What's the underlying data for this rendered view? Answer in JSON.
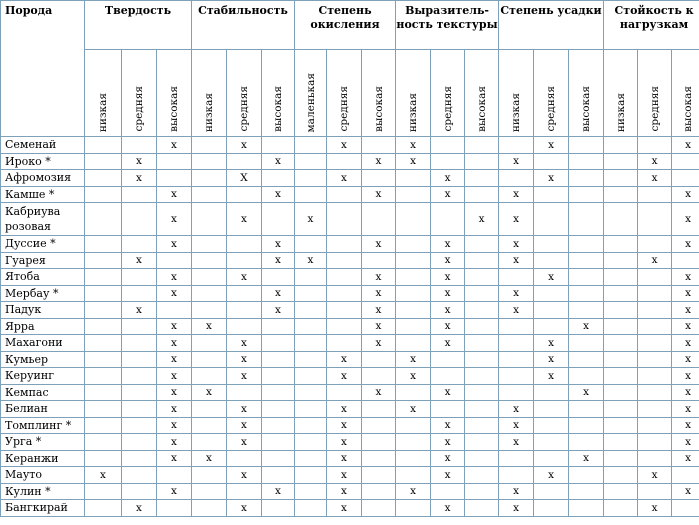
{
  "header": {
    "breed_label": "Порода",
    "groups": [
      "Твердость",
      "Стабильность",
      "Степень окисления",
      "Выразитель-ность текстуры",
      "Степень усадки",
      "Стойкость к нагрузкам"
    ],
    "sublevels": [
      [
        "низкая",
        "средняя",
        "высокая"
      ],
      [
        "низкая",
        "средняя",
        "высокая"
      ],
      [
        "маленькая",
        "средняя",
        "высокая"
      ],
      [
        "низкая",
        "средняя",
        "высокая"
      ],
      [
        "низкая",
        "средняя",
        "высокая"
      ],
      [
        "низкая",
        "средняя",
        "высокая"
      ]
    ]
  },
  "rows": [
    {
      "name": "Семенай",
      "marks": [
        "",
        "",
        "x",
        "",
        "x",
        "",
        "",
        "x",
        "",
        "x",
        "",
        "",
        "",
        "x",
        "",
        "",
        "",
        "x"
      ]
    },
    {
      "name": "Ироко *",
      "marks": [
        "",
        "x",
        "",
        "",
        "",
        "x",
        "",
        "",
        "x",
        "x",
        "",
        "",
        "x",
        "",
        "",
        "",
        "x",
        ""
      ]
    },
    {
      "name": "Афромозия",
      "marks": [
        "",
        "x",
        "",
        "",
        "X",
        "",
        "",
        "x",
        "",
        "",
        "x",
        "",
        "",
        "x",
        "",
        "",
        "x",
        ""
      ]
    },
    {
      "name": "Камше *",
      "marks": [
        "",
        "",
        "x",
        "",
        "",
        "x",
        "",
        "",
        "x",
        "",
        "x",
        "",
        "x",
        "",
        "",
        "",
        "",
        "x"
      ]
    },
    {
      "name": "Кабриува розовая",
      "marks": [
        "",
        "",
        "x",
        "",
        "x",
        "",
        "x",
        "",
        "",
        "",
        "",
        "x",
        "x",
        "",
        "",
        "",
        "",
        "x"
      ]
    },
    {
      "name": "Дуссие *",
      "marks": [
        "",
        "",
        "x",
        "",
        "",
        "x",
        "",
        "",
        "x",
        "",
        "x",
        "",
        "x",
        "",
        "",
        "",
        "",
        "x"
      ]
    },
    {
      "name": "Гуарея",
      "marks": [
        "",
        "x",
        "",
        "",
        "",
        "x",
        "x",
        "",
        "",
        "",
        "x",
        "",
        "x",
        "",
        "",
        "",
        "x",
        ""
      ]
    },
    {
      "name": "Ятоба",
      "marks": [
        "",
        "",
        "x",
        "",
        "x",
        "",
        "",
        "",
        "x",
        "",
        "x",
        "",
        "",
        "x",
        "",
        "",
        "",
        "x"
      ]
    },
    {
      "name": "Мербау *",
      "marks": [
        "",
        "",
        "x",
        "",
        "",
        "x",
        "",
        "",
        "x",
        "",
        "x",
        "",
        "x",
        "",
        "",
        "",
        "",
        "x"
      ]
    },
    {
      "name": "Падук",
      "marks": [
        "",
        "x",
        "",
        "",
        "",
        "x",
        "",
        "",
        "x",
        "",
        "x",
        "",
        "x",
        "",
        "",
        "",
        "",
        "x"
      ]
    },
    {
      "name": "Ярра",
      "marks": [
        "",
        "",
        "x",
        "x",
        "",
        "",
        "",
        "",
        "x",
        "",
        "x",
        "",
        "",
        "",
        "x",
        "",
        "",
        "x"
      ]
    },
    {
      "name": "Махагони",
      "marks": [
        "",
        "",
        "x",
        "",
        "x",
        "",
        "",
        "",
        "x",
        "",
        "x",
        "",
        "",
        "x",
        "",
        "",
        "",
        "x"
      ]
    },
    {
      "name": "Кумьер",
      "marks": [
        "",
        "",
        "x",
        "",
        "x",
        "",
        "",
        "x",
        "",
        "x",
        "",
        "",
        "",
        "x",
        "",
        "",
        "",
        "x"
      ]
    },
    {
      "name": "Керуинг",
      "marks": [
        "",
        "",
        "x",
        "",
        "x",
        "",
        "",
        "x",
        "",
        "x",
        "",
        "",
        "",
        "x",
        "",
        "",
        "",
        "x"
      ]
    },
    {
      "name": "Кемпас",
      "marks": [
        "",
        "",
        "x",
        "x",
        "",
        "",
        "",
        "",
        "x",
        "",
        "x",
        "",
        "",
        "",
        "x",
        "",
        "",
        "x"
      ]
    },
    {
      "name": "Белиан",
      "marks": [
        "",
        "",
        "x",
        "",
        "x",
        "",
        "",
        "x",
        "",
        "x",
        "",
        "",
        "x",
        "",
        "",
        "",
        "",
        "x"
      ]
    },
    {
      "name": "Томплинг *",
      "marks": [
        "",
        "",
        "x",
        "",
        "x",
        "",
        "",
        "x",
        "",
        "",
        "x",
        "",
        "x",
        "",
        "",
        "",
        "",
        "x"
      ]
    },
    {
      "name": "Урга *",
      "marks": [
        "",
        "",
        "x",
        "",
        "x",
        "",
        "",
        "x",
        "",
        "",
        "x",
        "",
        "x",
        "",
        "",
        "",
        "",
        "x"
      ]
    },
    {
      "name": "Керанжи",
      "marks": [
        "",
        "",
        "x",
        "x",
        "",
        "",
        "",
        "x",
        "",
        "",
        "x",
        "",
        "",
        "",
        "x",
        "",
        "",
        "x"
      ]
    },
    {
      "name": "Мауто",
      "marks": [
        "x",
        "",
        "",
        "",
        "x",
        "",
        "",
        "x",
        "",
        "",
        "x",
        "",
        "",
        "x",
        "",
        "",
        "x",
        ""
      ]
    },
    {
      "name": "Кулин *",
      "marks": [
        "",
        "",
        "x",
        "",
        "",
        "x",
        "",
        "x",
        "",
        "x",
        "",
        "",
        "x",
        "",
        "",
        "",
        "",
        "x"
      ]
    },
    {
      "name": "Бангкирай",
      "marks": [
        "",
        "x",
        "",
        "",
        "x",
        "",
        "",
        "x",
        "",
        "",
        "x",
        "",
        "x",
        "",
        "",
        "",
        "x",
        ""
      ]
    }
  ]
}
